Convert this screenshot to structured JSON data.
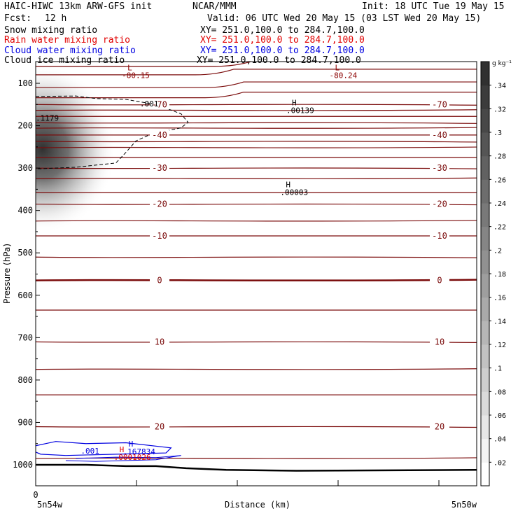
{
  "header": {
    "title": "HAIC-HIWC 13km ARW-GFS init",
    "org": "NCAR/MMM",
    "init": "Init: 18 UTC Tue 19 May 15",
    "fcst_label": "Fcst:",
    "fcst_value": "12 h",
    "valid": "Valid: 06 UTC Wed 20 May 15 (03 LST Wed 20 May 15)",
    "fields": [
      {
        "name": "Snow mixing ratio",
        "xy": "XY= 251.0,100.0 to 284.7,100.0",
        "color": "#000000"
      },
      {
        "name": "Rain water mixing ratio",
        "xy": "XY= 251.0,100.0 to 284.7,100.0",
        "color": "#e00000"
      },
      {
        "name": "Cloud water mixing ratio",
        "xy": "XY= 251.0,100.0 to 284.7,100.0",
        "color": "#0000e0"
      },
      {
        "name": "Cloud ice mixing ratio",
        "xy": "XY= 251.0,100.0 to 284.7,100.0",
        "color": "#000000"
      }
    ]
  },
  "chart_data": {
    "type": "heatmap",
    "ylabel": "Pressure (hPa)",
    "xlabel": "Distance (km)",
    "x_ticks": [
      "0"
    ],
    "x_end_labels": [
      "5n54w",
      "5n50w"
    ],
    "y_ticks": [
      100,
      200,
      300,
      400,
      500,
      600,
      700,
      800,
      900,
      1000
    ],
    "y_range": [
      50,
      1050
    ],
    "x_range": [
      0,
      4.4
    ],
    "colorbar": {
      "unit": "g kg⁻¹",
      "ticks": [
        ".02",
        ".04",
        ".06",
        ".08",
        ".1",
        ".12",
        ".14",
        ".16",
        ".18",
        ".2",
        ".22",
        ".24",
        ".26",
        ".28",
        ".3",
        ".32",
        ".34"
      ],
      "min": 0,
      "max": 0.36
    },
    "temperature_contours": [
      {
        "p": 40,
        "label": "",
        "dip_x": 2.1
      },
      {
        "p": 60,
        "label": "",
        "dip_x": 2.0
      },
      {
        "p": 80,
        "label": "",
        "dip_x": 1.8
      },
      {
        "p": 110,
        "label": "",
        "dip_x": 1.9
      },
      {
        "p": 134,
        "label": "",
        "dip_x": 1.9
      },
      {
        "p": 150,
        "label": "-70"
      },
      {
        "p": 164,
        "label": ""
      },
      {
        "p": 178,
        "label": ""
      },
      {
        "p": 193,
        "label": ""
      },
      {
        "p": 206,
        "label": ""
      },
      {
        "p": 222,
        "label": "-40"
      },
      {
        "p": 237,
        "label": ""
      },
      {
        "p": 252,
        "label": ""
      },
      {
        "p": 275,
        "label": ""
      },
      {
        "p": 300,
        "label": "-30"
      },
      {
        "p": 325,
        "label": ""
      },
      {
        "p": 358,
        "label": ""
      },
      {
        "p": 385,
        "label": "-20"
      },
      {
        "p": 425,
        "label": ""
      },
      {
        "p": 460,
        "label": "-10"
      },
      {
        "p": 510,
        "label": ""
      },
      {
        "p": 565,
        "label": "0",
        "bold": true
      },
      {
        "p": 635,
        "label": ""
      },
      {
        "p": 710,
        "label": "10"
      },
      {
        "p": 775,
        "label": ""
      },
      {
        "p": 835,
        "label": ""
      },
      {
        "p": 910,
        "label": "20"
      },
      {
        "p": 985,
        "label": ""
      }
    ],
    "extrema_labels": [
      {
        "symbol": "L",
        "value": "-80.15",
        "x": 0.86,
        "p": 79,
        "color": "#8b0000"
      },
      {
        "symbol": "L",
        "value": "-80.24",
        "x": 2.93,
        "p": 79,
        "color": "#8b0000"
      },
      {
        "symbol": "H",
        "value": ".00139",
        "x": 2.5,
        "p": 162,
        "color": "#000000"
      },
      {
        "symbol": "H",
        "value": ".00003",
        "x": 2.44,
        "p": 355,
        "color": "#000000"
      },
      {
        "symbol": "",
        "value": ".001",
        "x": 1.04,
        "p": 146,
        "color": "#000000"
      },
      {
        "symbol": "",
        "value": ".1179",
        "x": 0.0,
        "p": 180,
        "color": "#000000"
      },
      {
        "symbol": "",
        "value": ".001",
        "x": 0.45,
        "p": 965,
        "color": "#0000e0"
      },
      {
        "symbol": "H",
        "value": ".167834",
        "x": 0.87,
        "p": 967,
        "color": "#0000e0"
      },
      {
        "symbol": "H",
        "value": ".0001026",
        "x": 0.78,
        "p": 980,
        "color": "#e00000"
      }
    ],
    "snow_blob": {
      "x": 0.0,
      "p": 255,
      "max": 0.36
    },
    "ice_contour": [
      [
        0,
        131
      ],
      [
        0.4,
        130
      ],
      [
        0.6,
        136
      ],
      [
        0.9,
        138
      ],
      [
        1.2,
        150
      ],
      [
        1.45,
        172
      ],
      [
        1.52,
        192
      ],
      [
        1.45,
        205
      ],
      [
        1.15,
        220
      ],
      [
        1.0,
        236
      ],
      [
        0.9,
        263
      ],
      [
        0.8,
        288
      ],
      [
        0.4,
        298
      ],
      [
        0.0,
        302
      ]
    ],
    "ground": [
      [
        0,
        1000
      ],
      [
        0.5,
        1000
      ],
      [
        0.9,
        1003
      ],
      [
        1.2,
        1003
      ],
      [
        1.5,
        1008
      ],
      [
        1.9,
        1012
      ],
      [
        2.6,
        1014
      ],
      [
        4.4,
        1012
      ]
    ]
  }
}
